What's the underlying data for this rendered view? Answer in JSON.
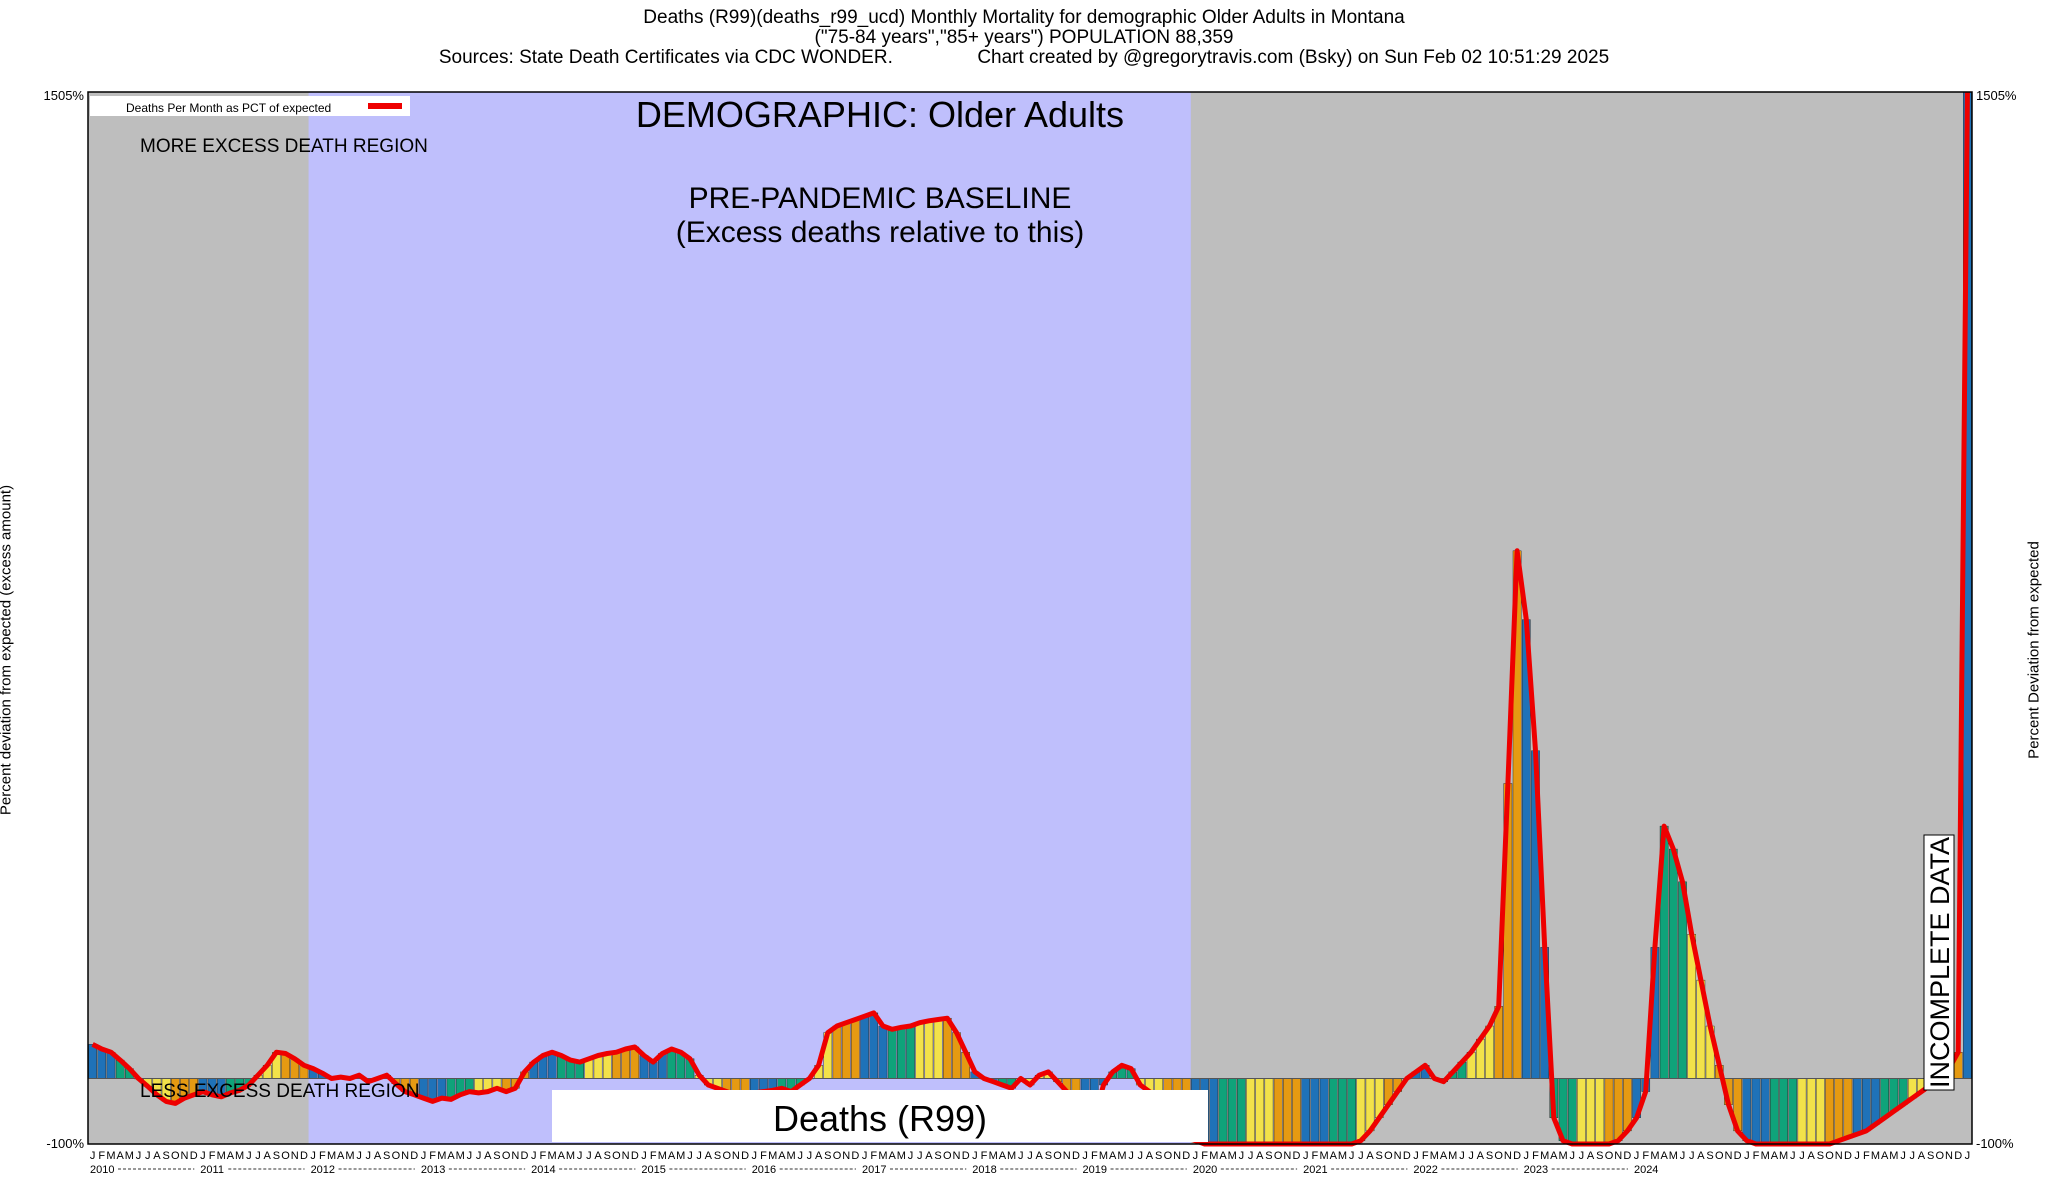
{
  "header": {
    "line1": "Deaths (R99)(deaths_r99_ucd) Monthly Mortality for demographic Older Adults in Montana",
    "line2": "(\"75-84 years\",\"85+ years\") POPULATION 88,359",
    "line3": "Sources: State Death Certificates via CDC WONDER.                Chart created by @gregorytravis.com (Bsky) on Sun Feb 02 10:51:29 2025"
  },
  "colors": {
    "baseline_region": "#bfbffc",
    "outer_region": "#bebebe",
    "line": "#ee0000",
    "bar_blue": "#1f72b8",
    "bar_green": "#0fa37a",
    "bar_yellow": "#f2e24a",
    "bar_orange": "#e59a12"
  },
  "chart_data": {
    "type": "bar",
    "title": "DEMOGRAPHIC: Older Adults",
    "baseline_label": "PRE-PANDEMIC BASELINE",
    "baseline_sublabel": "(Excess deaths relative to this)",
    "more_region_label": "MORE EXCESS DEATH REGION",
    "less_region_label": "LESS EXCESS DEATH REGION",
    "series_caption": "Deaths (R99)",
    "incomplete_label": "INCOMPLETE DATA",
    "legend": "Deaths Per Month as PCT of expected",
    "ylabel": "Percent deviation from expected (excess amount)",
    "y2label": "Percent Deviation from expected",
    "ylim": [
      -100,
      1505
    ],
    "ytick_top": "1505%",
    "ytick_bottom": "-100%",
    "baseline_start": "2012-01",
    "baseline_end": "2019-12",
    "month_letters": [
      "J",
      "F",
      "M",
      "A",
      "M",
      "J",
      "J",
      "A",
      "S",
      "O",
      "N",
      "D"
    ],
    "years": [
      "2010",
      "2011",
      "2012",
      "2013",
      "2014",
      "2015",
      "2016",
      "2017",
      "2018",
      "2019",
      "2020",
      "2021",
      "2022",
      "2023",
      "2024"
    ],
    "start": "2010-01",
    "values": [
      52,
      45,
      40,
      28,
      15,
      0,
      -12,
      -25,
      -35,
      -38,
      -30,
      -25,
      -20,
      -25,
      -28,
      -22,
      -18,
      -10,
      5,
      20,
      40,
      38,
      30,
      20,
      15,
      8,
      0,
      2,
      0,
      5,
      -5,
      0,
      5,
      -8,
      -20,
      -25,
      -30,
      -35,
      -30,
      -32,
      -25,
      -20,
      -22,
      -20,
      -15,
      -20,
      -15,
      10,
      25,
      35,
      40,
      35,
      28,
      25,
      30,
      35,
      38,
      40,
      45,
      48,
      35,
      25,
      38,
      45,
      40,
      30,
      5,
      -10,
      -15,
      -20,
      -25,
      -25,
      -22,
      -20,
      -18,
      -15,
      -20,
      -10,
      0,
      20,
      70,
      80,
      85,
      90,
      95,
      100,
      80,
      75,
      78,
      80,
      85,
      88,
      90,
      92,
      70,
      40,
      10,
      0,
      -5,
      -10,
      -15,
      0,
      -10,
      5,
      10,
      -5,
      -20,
      -70,
      -75,
      -60,
      -10,
      10,
      20,
      15,
      -10,
      -20,
      -30,
      -45,
      -60,
      -90,
      -95,
      -100,
      -100,
      -100,
      -100,
      -100,
      -100,
      -100,
      -100,
      -100,
      -100,
      -100,
      -100,
      -100,
      -100,
      -100,
      -100,
      -100,
      -95,
      -80,
      -60,
      -40,
      -20,
      0,
      10,
      20,
      0,
      -5,
      10,
      25,
      40,
      60,
      80,
      110,
      450,
      805,
      700,
      500,
      200,
      -60,
      -95,
      -100,
      -100,
      -100,
      -100,
      -100,
      -95,
      -80,
      -60,
      -20,
      200,
      385,
      350,
      300,
      220,
      150,
      80,
      20,
      -40,
      -80,
      -95,
      -100,
      -100,
      -100,
      -100,
      -100,
      -100,
      -100,
      -100,
      -100,
      -95,
      -90,
      -85,
      -80,
      -70,
      -60,
      -50,
      -40,
      -30,
      -20,
      -10,
      0,
      15,
      40,
      1505
    ]
  }
}
